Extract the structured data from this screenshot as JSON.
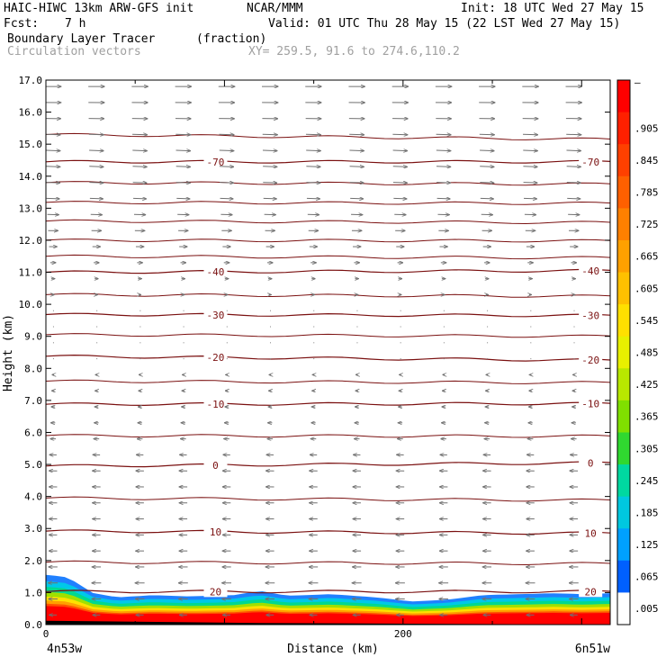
{
  "header": {
    "model": "HAIC-HIWC 13km ARW-GFS init",
    "org": "NCAR/MMM",
    "init": "Init: 18 UTC Wed 27 May 15",
    "fcst_label": "Fcst:",
    "fcst_value": "7 h",
    "valid": "Valid: 01 UTC Thu 28 May 15 (22 LST Wed 27 May 15)",
    "field1_name": "Boundary Layer Tracer",
    "field1_units": "(fraction)",
    "field2_name": "Circulation vectors",
    "xy_label": "XY= 259.5, 91.6 to 274.6,110.2"
  },
  "chart_data": {
    "type": "heatmap",
    "xlabel": "Distance (km)",
    "ylabel": "Height (km)",
    "xlim": [
      0,
      316
    ],
    "ylim": [
      0,
      17
    ],
    "yticks": [
      "0.0",
      "1.0",
      "2.0",
      "3.0",
      "4.0",
      "5.0",
      "6.0",
      "7.0",
      "8.0",
      "9.0",
      "10.0",
      "11.0",
      "12.0",
      "13.0",
      "14.0",
      "15.0",
      "16.0",
      "17.0"
    ],
    "xticks": [
      {
        "value": 0,
        "label": "0"
      },
      {
        "value": 200,
        "label": "200"
      }
    ],
    "endpoints": {
      "left": "4n53w",
      "right": "6n51w"
    },
    "colorbar": {
      "labels": [
        "–",
        ".905",
        ".845",
        ".785",
        ".725",
        ".665",
        ".605",
        ".545",
        ".485",
        ".425",
        ".365",
        ".305",
        ".245",
        ".185",
        ".125",
        ".065",
        ".005"
      ],
      "colors": [
        "#ff0000",
        "#ff2000",
        "#ff4000",
        "#ff6000",
        "#ff8000",
        "#ffa000",
        "#ffc000",
        "#ffe000",
        "#e8f000",
        "#b8e800",
        "#80e000",
        "#30d830",
        "#00d8a0",
        "#00c8e0",
        "#00a0ff",
        "#0060ff",
        "#ffffff"
      ]
    },
    "tracer_top_km": [
      {
        "x": 0,
        "h": 1.55
      },
      {
        "x": 10,
        "h": 1.5
      },
      {
        "x": 18,
        "h": 1.3
      },
      {
        "x": 25,
        "h": 1.0
      },
      {
        "x": 40,
        "h": 0.85
      },
      {
        "x": 60,
        "h": 0.92
      },
      {
        "x": 80,
        "h": 0.88
      },
      {
        "x": 105,
        "h": 0.92
      },
      {
        "x": 120,
        "h": 1.05
      },
      {
        "x": 135,
        "h": 0.9
      },
      {
        "x": 160,
        "h": 0.95
      },
      {
        "x": 185,
        "h": 0.85
      },
      {
        "x": 205,
        "h": 0.72
      },
      {
        "x": 225,
        "h": 0.78
      },
      {
        "x": 245,
        "h": 0.92
      },
      {
        "x": 265,
        "h": 0.95
      },
      {
        "x": 285,
        "h": 0.98
      },
      {
        "x": 300,
        "h": 0.95
      },
      {
        "x": 316,
        "h": 0.98
      }
    ],
    "contours": [
      {
        "label": "-70",
        "left": 14.45,
        "right": 14.45
      },
      {
        "label": "-40",
        "left": 11.0,
        "right": 11.05
      },
      {
        "label": "-30",
        "left": 9.68,
        "right": 9.65
      },
      {
        "label": "-20",
        "left": 8.38,
        "right": 8.25
      },
      {
        "label": "-10",
        "left": 6.88,
        "right": 6.9
      },
      {
        "label": "0",
        "left": 4.95,
        "right": 5.05
      },
      {
        "label": "10",
        "left": 2.92,
        "right": 2.85
      },
      {
        "label": "20",
        "left": 1.03,
        "right": 1.03
      }
    ],
    "unlabeled_contours": [
      {
        "left": 15.3,
        "right": 15.15
      },
      {
        "left": 13.8,
        "right": 13.75
      },
      {
        "left": 13.18,
        "right": 13.15
      },
      {
        "left": 12.6,
        "right": 12.55
      },
      {
        "left": 12.0,
        "right": 11.98
      },
      {
        "left": 11.5,
        "right": 11.45
      },
      {
        "left": 10.3,
        "right": 10.25
      },
      {
        "left": 9.05,
        "right": 9.0
      },
      {
        "left": 7.6,
        "right": 7.55
      },
      {
        "left": 5.9,
        "right": 5.88
      },
      {
        "left": 3.95,
        "right": 3.88
      },
      {
        "left": 1.95,
        "right": 1.9
      }
    ],
    "wind_profile": [
      {
        "z": 16.5,
        "u": 1.0,
        "w": 0.0
      },
      {
        "z": 15.0,
        "u": 0.9,
        "w": -0.05
      },
      {
        "z": 13.5,
        "u": 0.85,
        "w": -0.05
      },
      {
        "z": 12.0,
        "u": 0.55,
        "w": 0.0
      },
      {
        "z": 11.0,
        "u": 0.25,
        "w": 0.0
      },
      {
        "z": 10.0,
        "u": 0.1,
        "w": 0.0
      },
      {
        "z": 8.0,
        "u": -0.1,
        "w": 0.0
      },
      {
        "z": 6.0,
        "u": -0.3,
        "w": 0.0
      },
      {
        "z": 5.0,
        "u": -0.5,
        "w": 0.02
      },
      {
        "z": 4.0,
        "u": -0.5,
        "w": 0.0
      },
      {
        "z": 2.5,
        "u": -0.5,
        "w": 0.0
      },
      {
        "z": 1.0,
        "u": -0.6,
        "w": 0.0
      },
      {
        "z": 0.2,
        "u": -0.45,
        "w": 0.0
      }
    ]
  }
}
